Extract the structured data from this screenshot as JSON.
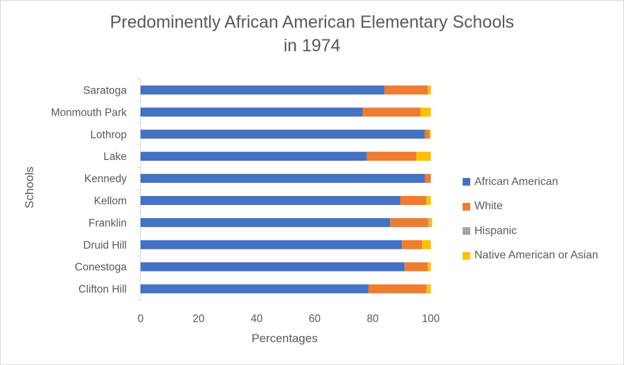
{
  "chart_data": {
    "type": "bar",
    "orientation": "horizontal",
    "stacked": true,
    "title": [
      "Predominently African American Elementary Schools",
      "in 1974"
    ],
    "xlabel": "Percentages",
    "ylabel": "Schools",
    "xlim": [
      0,
      100
    ],
    "xticks": [
      0,
      20,
      40,
      60,
      80,
      100
    ],
    "grid": false,
    "legend_position": "right",
    "categories": [
      "Clifton Hill",
      "Conestoga",
      "Druid Hill",
      "Franklin",
      "Kellom",
      "Kennedy",
      "Lake",
      "Lothrop",
      "Monmouth Park",
      "Saratoga"
    ],
    "series": [
      {
        "name": "African American",
        "color": "#4472c4",
        "values": [
          78.5,
          91,
          90,
          86,
          89.5,
          98,
          78,
          98,
          76.5,
          84
        ]
      },
      {
        "name": "White",
        "color": "#ed7d31",
        "values": [
          20,
          8,
          7,
          13,
          9,
          2,
          17,
          1.5,
          20,
          15
        ]
      },
      {
        "name": "Hispanic",
        "color": "#a5a5a5",
        "values": [
          0,
          0,
          0,
          0.5,
          0,
          0,
          0,
          0,
          0,
          0
        ]
      },
      {
        "name": "Native American or Asian",
        "color": "#ffc000",
        "values": [
          1.5,
          1,
          3,
          1,
          1.5,
          0,
          5,
          0.5,
          3.5,
          1
        ]
      }
    ]
  }
}
